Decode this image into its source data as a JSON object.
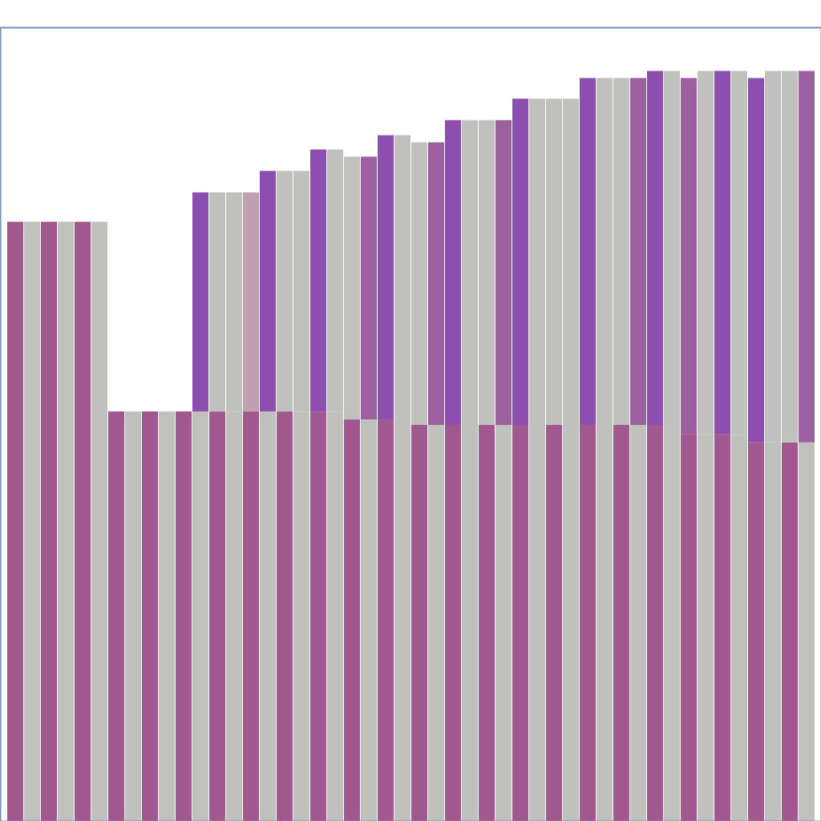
{
  "chart_data": {
    "type": "bar",
    "stacked": true,
    "tick_labels": false,
    "grid": false,
    "categories": [
      null,
      null,
      null,
      null,
      null,
      null,
      null,
      null,
      null,
      null,
      null,
      null,
      null,
      null,
      null,
      null,
      null,
      null,
      null,
      null,
      null,
      null,
      null,
      null,
      null,
      null,
      null,
      null,
      null,
      null,
      null,
      null,
      null,
      null,
      null,
      null,
      null,
      null,
      null,
      null,
      null,
      null,
      null,
      null,
      null,
      null,
      null,
      null
    ],
    "ylim": [
      0,
      100
    ],
    "yticks": [],
    "series": [
      {
        "color": "#a0588f",
        "colors": [
          "#a0588f",
          "#c0c0bc",
          "#a0588f",
          "#c0c0bc",
          "#a0588f",
          "#c0c0bc",
          "#a0588f",
          "#c0c0bc",
          "#a0588f",
          "#c0c0bc",
          "#a0588f",
          "#c0c0bc",
          "#a0588f",
          "#c0c0bc",
          "#a0588f",
          "#c0c0bc",
          "#a0588f",
          "#c0c0bc",
          "#a0588f",
          "#c0c0bc",
          "#a0588f",
          "#c0c0bc",
          "#a0588f",
          "#c0c0bc",
          "#a0588f",
          "#c0c0bc",
          "#a0588f",
          "#c0c0bc",
          "#a0588f",
          "#c0c0bc",
          "#a0588f",
          "#c0c0bc",
          "#a0588f",
          "#c0c0bc",
          "#a0588f",
          "#c0c0bc",
          "#a0588f",
          "#c0c0bc",
          "#a0588f",
          "#c0c0bc",
          "#a0588f",
          "#c0c0bc",
          "#a0588f",
          "#c0c0bc",
          "#a0588f",
          "#c0c0bc",
          "#a0588f",
          "#c0c0bc"
        ],
        "values": [
          75.5,
          75.5,
          75.5,
          75.5,
          75.5,
          75.5,
          51.6,
          51.6,
          51.6,
          51.6,
          51.6,
          51.6,
          51.6,
          51.6,
          51.6,
          51.6,
          51.6,
          51.6,
          51.6,
          51.6,
          50.6,
          50.6,
          50.6,
          50.6,
          49.9,
          49.9,
          49.9,
          49.9,
          49.9,
          49.9,
          49.9,
          49.9,
          49.9,
          49.9,
          49.9,
          49.9,
          49.9,
          49.9,
          49.9,
          49.9,
          48.7,
          48.7,
          48.7,
          48.7,
          47.7,
          47.7,
          47.7,
          47.7
        ]
      },
      {
        "color": "#8c4fb0",
        "colors": [
          "#8c4fb0",
          "#c0c0bc",
          "#8c4fb0",
          "#c0c0bc",
          "#8c4fb0",
          "#c0c0bc",
          "#8c4fb0",
          "#c0c0bc",
          "#8c4fb0",
          "#c0c0bc",
          "#8c4fb0",
          "#8c4fb0",
          "#c0c0bc",
          "#c0c0bc",
          "#c0a0b0",
          "#8c4fb0",
          "#c0c0bc",
          "#c0c0bc",
          "#8c4fb0",
          "#c0c0bc",
          "#c0c0bc",
          "#9c5fa0",
          "#8c4fb0",
          "#c0c0bc",
          "#c0c0bc",
          "#9c5fa0",
          "#8c4fb0",
          "#c0c0bc",
          "#c0c0bc",
          "#9c5fa0",
          "#8c4fb0",
          "#c0c0bc",
          "#c0c0bc",
          "#c0c0bc",
          "#8c4fb0",
          "#c0c0bc",
          "#c0c0bc",
          "#9c5fa0",
          "#8c4fb0",
          "#c0c0bc",
          "#9c5fa0",
          "#c0c0bc",
          "#8c4fb0",
          "#c0c0bc",
          "#8c4fb0",
          "#c0c0bc",
          "#c0c0bc",
          "#9c5fa0"
        ],
        "values": [
          0,
          0,
          0,
          0,
          0,
          0,
          0,
          0,
          0,
          0,
          0,
          27.6,
          27.6,
          27.6,
          27.6,
          30.3,
          30.3,
          30.3,
          33,
          33,
          33.1,
          33.1,
          35.8,
          35.8,
          35.6,
          35.6,
          38.4,
          38.4,
          38.4,
          38.4,
          41.1,
          41.1,
          41.1,
          41.1,
          43.7,
          43.7,
          43.7,
          43.7,
          44.6,
          44.6,
          44.9,
          45.8,
          45.8,
          45.8,
          45.9,
          46.8,
          46.8,
          46.8
        ]
      }
    ]
  }
}
